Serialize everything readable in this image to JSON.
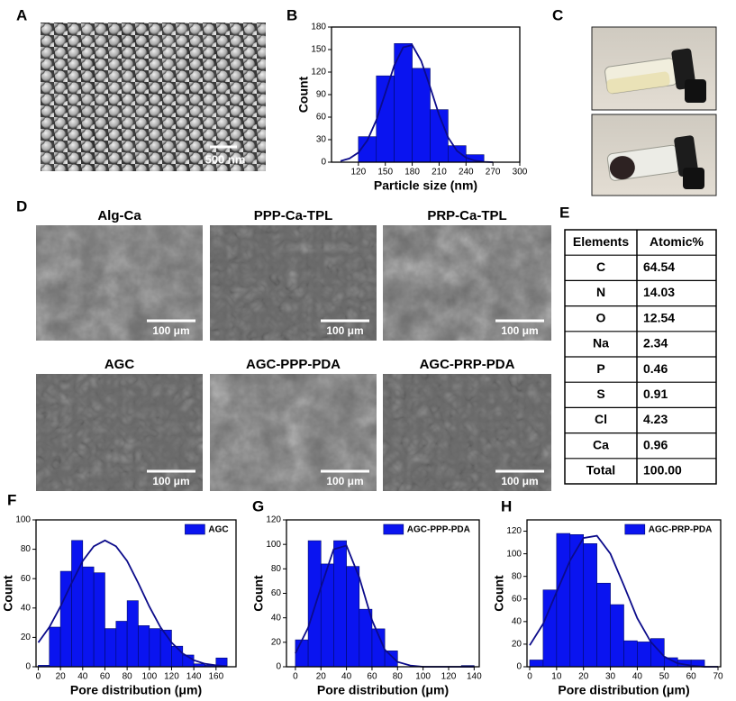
{
  "panel_labels": [
    "A",
    "B",
    "C",
    "D",
    "E",
    "F",
    "G",
    "H"
  ],
  "panel_a": {
    "scale_bar": "500 nm"
  },
  "panel_d": {
    "images": [
      {
        "title": "Alg-Ca",
        "scale_bar": "100 μm"
      },
      {
        "title": "PPP-Ca-TPL",
        "scale_bar": "100 μm"
      },
      {
        "title": "PRP-Ca-TPL",
        "scale_bar": "100 μm"
      },
      {
        "title": "AGC",
        "scale_bar": "100 μm"
      },
      {
        "title": "AGC-PPP-PDA",
        "scale_bar": "100 μm"
      },
      {
        "title": "AGC-PRP-PDA",
        "scale_bar": "100 μm"
      }
    ]
  },
  "table": {
    "header": [
      "Elements",
      "Atomic%"
    ],
    "rows": [
      [
        "C",
        "64.54"
      ],
      [
        "N",
        "14.03"
      ],
      [
        "O",
        "12.54"
      ],
      [
        "Na",
        "2.34"
      ],
      [
        "P",
        "0.46"
      ],
      [
        "S",
        "0.91"
      ],
      [
        "Cl",
        "4.23"
      ],
      [
        "Ca",
        "0.96"
      ],
      [
        "Total",
        "100.00"
      ]
    ]
  },
  "chart_data": [
    {
      "type": "histogram",
      "xlabel": "Particle size (nm)",
      "ylabel": "Count",
      "bins": [
        120,
        140,
        160,
        180,
        200,
        220,
        240,
        260
      ],
      "values": [
        34,
        115,
        158,
        125,
        70,
        22,
        10
      ],
      "color": "#0a14f0",
      "fit_x": [
        100,
        110,
        120,
        130,
        140,
        150,
        160,
        170,
        180,
        190,
        200,
        210,
        220,
        230,
        240,
        250,
        260,
        270
      ],
      "fit_values": [
        1.6,
        4.9,
        12.8,
        29,
        56,
        92,
        129,
        153,
        156,
        135,
        100,
        63,
        33,
        15,
        6,
        2,
        0.5,
        0
      ],
      "fit_color": "#0b0b8a",
      "xlim": [
        90,
        300
      ],
      "xticks": [
        120,
        150,
        180,
        210,
        240,
        270,
        300
      ],
      "ylim": [
        0,
        180
      ],
      "yticks": [
        0,
        30,
        60,
        90,
        120,
        150,
        180
      ]
    },
    {
      "type": "histogram",
      "xlabel": "Pore distribution (μm)",
      "ylabel": "Count",
      "bins": [
        0,
        10,
        20,
        30,
        40,
        50,
        60,
        70,
        80,
        90,
        100,
        110,
        120,
        130,
        140,
        150,
        160,
        170
      ],
      "series": [
        {
          "name": "AGC",
          "color": "#0a14f0",
          "values": [
            1,
            27,
            65,
            86,
            68,
            64,
            26,
            31,
            45,
            28,
            26,
            25,
            14,
            8,
            2,
            1,
            6
          ]
        }
      ],
      "fit_x": [
        0,
        10,
        20,
        30,
        40,
        50,
        60,
        70,
        80,
        90,
        100,
        110,
        120,
        130,
        140,
        150,
        160,
        170
      ],
      "fit_values": [
        16.5,
        27,
        41,
        57,
        72,
        82,
        86,
        82,
        72,
        57,
        41,
        27,
        16.5,
        9,
        4.5,
        2,
        1,
        0.4
      ],
      "fit_color": "#0b0b8a",
      "legend": "upper right",
      "xlim": [
        -2,
        178
      ],
      "xticks": [
        0,
        20,
        40,
        60,
        80,
        100,
        120,
        140,
        160
      ],
      "ylim": [
        0,
        100
      ],
      "yticks": [
        0,
        20,
        40,
        60,
        80,
        100
      ]
    },
    {
      "type": "histogram",
      "xlabel": "Pore distribution (μm)",
      "ylabel": "Count",
      "bins": [
        0,
        10,
        20,
        30,
        40,
        50,
        60,
        70,
        80,
        90,
        100,
        110,
        120,
        130,
        140
      ],
      "series": [
        {
          "name": "AGC-PPP-PDA",
          "color": "#0a14f0",
          "values": [
            22,
            103,
            84,
            103,
            82,
            47,
            31,
            13,
            0,
            0,
            0,
            0,
            0,
            1
          ]
        }
      ],
      "fit_x": [
        0,
        10,
        20,
        30,
        40,
        50,
        60,
        70,
        80,
        90,
        100,
        120,
        140
      ],
      "fit_values": [
        11,
        32,
        65,
        96,
        99,
        73,
        38,
        14,
        4,
        1,
        0,
        0,
        0
      ],
      "fit_color": "#0b0b8a",
      "legend": "upper right",
      "xlim": [
        -7,
        144
      ],
      "xticks": [
        0,
        20,
        40,
        60,
        80,
        100,
        120,
        140
      ],
      "ylim": [
        0,
        120
      ],
      "yticks": [
        0,
        20,
        40,
        60,
        80,
        100,
        120
      ]
    },
    {
      "type": "histogram",
      "xlabel": "Pore distribution (μm)",
      "ylabel": "Count",
      "bins": [
        0,
        5,
        10,
        15,
        20,
        25,
        30,
        35,
        40,
        45,
        50,
        55,
        60,
        65
      ],
      "series": [
        {
          "name": "AGC-PRP-PDA",
          "color": "#0a14f0",
          "values": [
            6,
            68,
            118,
            117,
            109,
            74,
            55,
            23,
            22,
            25,
            8,
            6,
            6
          ]
        }
      ],
      "fit_x": [
        0,
        5,
        10,
        15,
        20,
        25,
        30,
        35,
        40,
        45,
        50,
        55,
        60,
        65,
        70
      ],
      "fit_values": [
        19,
        38,
        66,
        94,
        114,
        116,
        100,
        72,
        43,
        22,
        9,
        3,
        1,
        0,
        0
      ],
      "fit_color": "#0b0b8a",
      "legend": "upper right",
      "xlim": [
        -1,
        71
      ],
      "xticks": [
        0,
        10,
        20,
        30,
        40,
        50,
        60,
        70
      ],
      "ylim": [
        0,
        130
      ],
      "yticks": [
        0,
        20,
        40,
        60,
        80,
        100,
        120
      ]
    }
  ]
}
